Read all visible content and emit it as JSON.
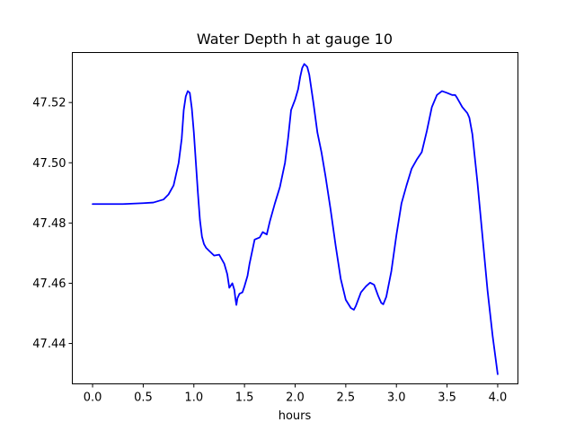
{
  "chart_data": {
    "type": "line",
    "title": "Water Depth h at gauge 10",
    "xlabel": "hours",
    "ylabel": "",
    "xlim": [
      -0.2,
      4.2
    ],
    "ylim": [
      47.4266,
      47.5366
    ],
    "xticks": [
      0.0,
      0.5,
      1.0,
      1.5,
      2.0,
      2.5,
      3.0,
      3.5,
      4.0
    ],
    "xtick_labels": [
      "0.0",
      "0.5",
      "1.0",
      "1.5",
      "2.0",
      "2.5",
      "3.0",
      "3.5",
      "4.0"
    ],
    "yticks": [
      47.44,
      47.46,
      47.48,
      47.5,
      47.52
    ],
    "ytick_labels": [
      "47.44",
      "47.46",
      "47.48",
      "47.50",
      "47.52"
    ],
    "grid": false,
    "legend": "none",
    "series": [
      {
        "color": "#0000ff",
        "x": [
          0.0,
          0.3,
          0.5,
          0.6,
          0.7,
          0.75,
          0.8,
          0.85,
          0.88,
          0.9,
          0.92,
          0.94,
          0.96,
          0.98,
          1.0,
          1.02,
          1.04,
          1.06,
          1.08,
          1.1,
          1.12,
          1.15,
          1.2,
          1.25,
          1.3,
          1.33,
          1.35,
          1.38,
          1.4,
          1.41,
          1.42,
          1.43,
          1.45,
          1.48,
          1.5,
          1.53,
          1.55,
          1.6,
          1.65,
          1.68,
          1.72,
          1.75,
          1.8,
          1.85,
          1.9,
          1.93,
          1.96,
          2.0,
          2.03,
          2.05,
          2.07,
          2.09,
          2.1,
          2.12,
          2.14,
          2.18,
          2.22,
          2.26,
          2.3,
          2.35,
          2.4,
          2.45,
          2.5,
          2.55,
          2.58,
          2.6,
          2.65,
          2.7,
          2.74,
          2.78,
          2.82,
          2.85,
          2.87,
          2.9,
          2.95,
          3.0,
          3.05,
          3.1,
          3.15,
          3.2,
          3.25,
          3.3,
          3.35,
          3.4,
          3.45,
          3.5,
          3.55,
          3.58,
          3.6,
          3.65,
          3.7,
          3.72,
          3.75,
          3.8,
          3.85,
          3.9,
          3.95,
          4.0
        ],
        "y": [
          47.4863,
          47.4863,
          47.4866,
          47.4868,
          47.4878,
          47.4895,
          47.4925,
          47.5,
          47.508,
          47.5175,
          47.522,
          47.5238,
          47.5232,
          47.518,
          47.51,
          47.5,
          47.49,
          47.481,
          47.4755,
          47.473,
          47.4718,
          47.4708,
          47.4692,
          47.4695,
          47.4665,
          47.463,
          47.4585,
          47.46,
          47.4578,
          47.455,
          47.4528,
          47.455,
          47.4565,
          47.457,
          47.459,
          47.4625,
          47.4665,
          47.4745,
          47.4752,
          47.477,
          47.4762,
          47.4805,
          47.4865,
          47.492,
          47.5,
          47.508,
          47.5175,
          47.521,
          47.5245,
          47.5285,
          47.5315,
          47.5328,
          47.5325,
          47.5318,
          47.5292,
          47.52,
          47.51,
          47.5035,
          47.4955,
          47.4845,
          47.4725,
          47.4615,
          47.4545,
          47.4518,
          47.4512,
          47.4525,
          47.457,
          47.459,
          47.4602,
          47.4595,
          47.4558,
          47.4535,
          47.453,
          47.4555,
          47.464,
          47.476,
          47.4865,
          47.4925,
          47.498,
          47.501,
          47.5035,
          47.5105,
          47.5185,
          47.5225,
          47.5238,
          47.5232,
          47.5225,
          47.5225,
          47.5215,
          47.5185,
          47.5165,
          47.515,
          47.5095,
          47.4935,
          47.4755,
          47.4575,
          47.4425,
          47.4298
        ]
      }
    ]
  }
}
